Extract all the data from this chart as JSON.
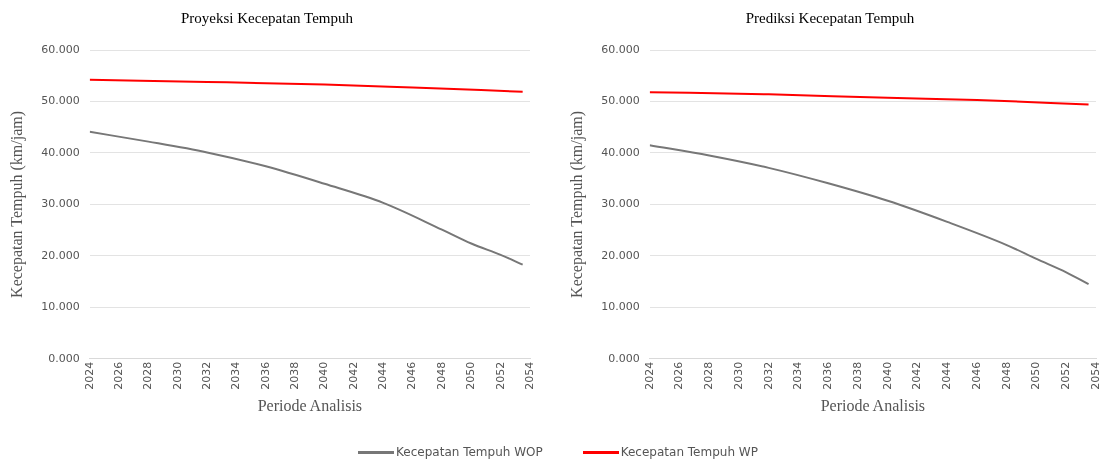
{
  "chart_data": [
    {
      "type": "line",
      "title": "Proyeksi Kecepatan Tempuh",
      "xlabel": "Periode Analisis",
      "ylabel": "Kecepatan Tempuh (km/jam)",
      "xlim": [
        2024,
        2054
      ],
      "xticks": [
        2024,
        2026,
        2028,
        2030,
        2032,
        2034,
        2036,
        2038,
        2040,
        2042,
        2044,
        2046,
        2048,
        2050,
        2052,
        2054
      ],
      "ylim": [
        0,
        60
      ],
      "yticks": [
        {
          "value": 0,
          "label": "0.000"
        },
        {
          "value": 10,
          "label": "10.000"
        },
        {
          "value": 20,
          "label": "20.000"
        },
        {
          "value": 30,
          "label": "30.000"
        },
        {
          "value": 40,
          "label": "40.000"
        },
        {
          "value": 50,
          "label": "50.000"
        },
        {
          "value": 60,
          "label": "60.000"
        }
      ],
      "grid": "y",
      "legend": "bottom",
      "marker": "none",
      "series": [
        {
          "name": "Kecepatan Tempuh WOP",
          "color": "#777777",
          "x": [
            2024,
            2028,
            2032,
            2036,
            2040,
            2044,
            2048,
            2050,
            2052,
            2053.5
          ],
          "values": [
            44.1,
            42.2,
            40.1,
            37.4,
            34.0,
            30.3,
            25.1,
            22.4,
            20.2,
            18.3
          ]
        },
        {
          "name": "Kecepatan Tempuh WP",
          "color": "#ff0000",
          "x": [
            2024,
            2032,
            2040,
            2046,
            2053.5
          ],
          "values": [
            54.2,
            53.8,
            53.3,
            52.7,
            51.9
          ]
        }
      ]
    },
    {
      "type": "line",
      "title": "Prediksi Kecepatan Tempuh",
      "xlabel": "Periode Analisis",
      "ylabel": "Kecepatan Tempuh (km/jam)",
      "xlim": [
        2024,
        2054
      ],
      "xticks": [
        2024,
        2026,
        2028,
        2030,
        2032,
        2034,
        2036,
        2038,
        2040,
        2042,
        2044,
        2046,
        2048,
        2050,
        2052,
        2054
      ],
      "ylim": [
        0,
        60
      ],
      "yticks": [
        {
          "value": 0,
          "label": "0.000"
        },
        {
          "value": 10,
          "label": "10.000"
        },
        {
          "value": 20,
          "label": "20.000"
        },
        {
          "value": 30,
          "label": "30.000"
        },
        {
          "value": 40,
          "label": "40.000"
        },
        {
          "value": 50,
          "label": "50.000"
        },
        {
          "value": 60,
          "label": "60.000"
        }
      ],
      "grid": "y",
      "legend": "bottom",
      "marker": "none",
      "series": [
        {
          "name": "Kecepatan Tempuh WOP",
          "color": "#777777",
          "x": [
            2024,
            2028,
            2032,
            2036,
            2040,
            2044,
            2048,
            2050,
            2052,
            2053.5
          ],
          "values": [
            41.5,
            39.5,
            37.1,
            34.1,
            30.7,
            26.6,
            22.1,
            19.4,
            16.8,
            14.5
          ]
        },
        {
          "name": "Kecepatan Tempuh WP",
          "color": "#ff0000",
          "x": [
            2024,
            2032,
            2040,
            2046,
            2053.5
          ],
          "values": [
            51.8,
            51.4,
            50.7,
            50.3,
            49.4
          ]
        }
      ]
    }
  ]
}
